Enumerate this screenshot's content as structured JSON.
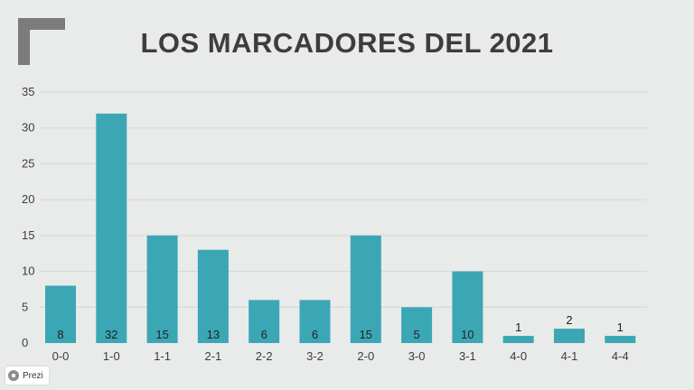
{
  "title": "LOS MARCADORES DEL 2021",
  "badge": {
    "label": "Prezi"
  },
  "colors": {
    "bar": "#3ba7b5",
    "title": "#3d3d3d",
    "axis_text": "#3d3d3d",
    "grid": "#d4d6d6",
    "corner": "#7b7b7b"
  },
  "chart_data": {
    "type": "bar",
    "title": "LOS MARCADORES DEL 2021",
    "categories": [
      "0-0",
      "1-0",
      "1-1",
      "2-1",
      "2-2",
      "3-2",
      "2-0",
      "3-0",
      "3-1",
      "4-0",
      "4-1",
      "4-4"
    ],
    "values": [
      8,
      32,
      15,
      13,
      6,
      6,
      15,
      5,
      10,
      1,
      2,
      1
    ],
    "data_labels": [
      "8",
      "32",
      "15",
      "13",
      "6",
      "6",
      "15",
      "5",
      "10",
      "1",
      "2",
      "1"
    ],
    "xlabel": "",
    "ylabel": "",
    "ylim": [
      0,
      35
    ],
    "yticks": [
      0,
      5,
      10,
      15,
      20,
      25,
      30,
      35
    ],
    "grid": true,
    "legend": "none"
  }
}
